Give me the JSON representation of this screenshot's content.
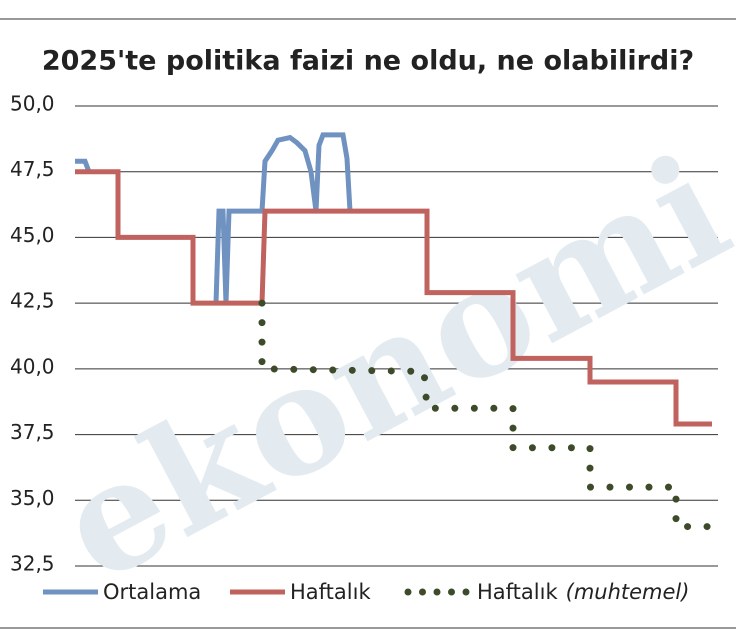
{
  "chart_data": {
    "type": "line",
    "title": "2025'te politika faizi ne oldu, ne olabilirdi?",
    "watermark": "ekonomi",
    "xlim": [
      0,
      637
    ],
    "ylim": [
      32.5,
      50
    ],
    "yticks": [
      {
        "value": 32.5,
        "label": "32,5"
      },
      {
        "value": 35,
        "label": "35,0"
      },
      {
        "value": 37.5,
        "label": "37,5"
      },
      {
        "value": 40,
        "label": "40,0"
      },
      {
        "value": 42.5,
        "label": "42,5"
      },
      {
        "value": 45,
        "label": "45,0"
      },
      {
        "value": 47.5,
        "label": "47,5"
      },
      {
        "value": 50,
        "label": "50,0"
      }
    ],
    "grid": true,
    "series": [
      {
        "name": "Ortalama",
        "color": "#6f92c0",
        "style": "solid",
        "x": [
          0,
          10,
          14,
          null,
          141,
          144,
          148,
          151,
          154,
          187,
          190,
          197,
          203,
          215,
          222,
          230,
          236,
          241,
          244,
          248,
          268,
          272,
          275
        ],
        "values": [
          47.9,
          47.9,
          47.5,
          null,
          42.5,
          46,
          46,
          42.5,
          46,
          46,
          47.9,
          48.3,
          48.7,
          48.8,
          48.6,
          48.3,
          47.5,
          46,
          48.5,
          48.9,
          48.9,
          48,
          46
        ]
      },
      {
        "name": "Haftalık",
        "color": "#c0625e",
        "style": "solid",
        "x": [
          0,
          43,
          43,
          118,
          118,
          187,
          190,
          352,
          352,
          438,
          438,
          515,
          515,
          601,
          601,
          637
        ],
        "values": [
          47.5,
          47.5,
          45,
          45,
          42.5,
          42.5,
          46,
          46,
          42.9,
          42.9,
          40.4,
          40.4,
          39.5,
          39.5,
          37.9,
          37.9
        ]
      },
      {
        "name": "Haftalık",
        "note": "(muhtemel)",
        "color": "#3d4b2b",
        "style": "dotted",
        "x": [
          187,
          187,
          349,
          352,
          438,
          438,
          515,
          515,
          601,
          601,
          637
        ],
        "values": [
          42.5,
          40,
          39.9,
          38.5,
          38.5,
          37,
          37,
          35.5,
          35.5,
          34,
          34
        ]
      }
    ]
  }
}
